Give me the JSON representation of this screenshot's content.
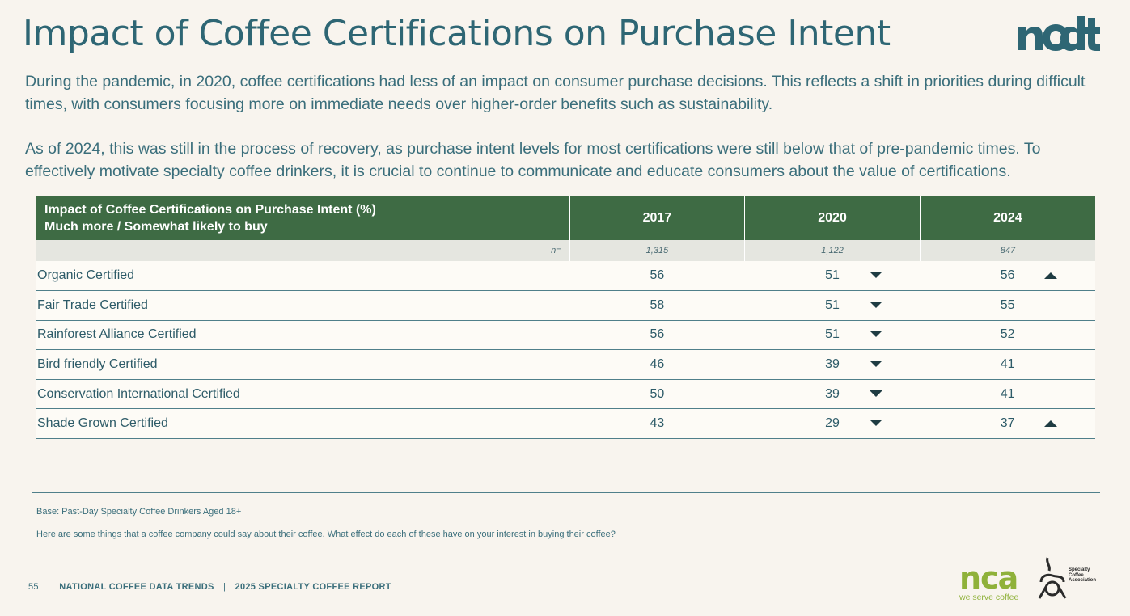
{
  "header": {
    "title": "Impact of Coffee Certifications on Purchase Intent",
    "logo_text": "ncdt"
  },
  "intro": {
    "paragraph1": "During the pandemic, in 2020, coffee certifications had less of an impact on consumer purchase decisions. This reflects a shift in priorities during difficult times, with consumers focusing more on immediate needs over higher-order benefits such as sustainability.",
    "paragraph2": "As of 2024, this was still in the process of recovery, as purchase intent levels for most certifications were still below that of pre-pandemic times. To effectively motivate specialty coffee drinkers, it is crucial to continue to communicate and educate consumers about the value of certifications."
  },
  "table": {
    "title_line1": "Impact of Coffee Certifications on Purchase Intent (%)",
    "title_line2": "Much more / Somewhat likely to buy",
    "years": [
      "2017",
      "2020",
      "2024"
    ],
    "n_label": "n=",
    "n_values": [
      "1,315",
      "1,122",
      "847"
    ],
    "rows": [
      {
        "label": "Organic Certified",
        "values": [
          "56",
          "51",
          "56"
        ],
        "arrows": [
          "",
          "down",
          "up"
        ]
      },
      {
        "label": "Fair Trade Certified",
        "values": [
          "58",
          "51",
          "55"
        ],
        "arrows": [
          "",
          "down",
          ""
        ]
      },
      {
        "label": "Rainforest Alliance Certified",
        "values": [
          "56",
          "51",
          "52"
        ],
        "arrows": [
          "",
          "down",
          ""
        ]
      },
      {
        "label": "Bird friendly Certified",
        "values": [
          "46",
          "39",
          "41"
        ],
        "arrows": [
          "",
          "down",
          ""
        ]
      },
      {
        "label": "Conservation International Certified",
        "values": [
          "50",
          "39",
          "41"
        ],
        "arrows": [
          "",
          "down",
          ""
        ]
      },
      {
        "label": "Shade Grown Certified",
        "values": [
          "43",
          "29",
          "37"
        ],
        "arrows": [
          "",
          "down",
          "up"
        ]
      }
    ]
  },
  "notes": {
    "base": "Base: Past-Day Specialty Coffee Drinkers Aged 18+",
    "question": "Here are some things that a coffee company could say about their coffee. What effect do each of these have on your interest in buying their coffee?"
  },
  "footer": {
    "page_number": "55",
    "left": "NATIONAL COFFEE DATA TRENDS",
    "separator": "|",
    "right": "2025 SPECIALTY COFFEE REPORT"
  },
  "logos": {
    "nca_mark": "nca",
    "nca_tagline": "we serve coffee",
    "sca_line1": "Specialty",
    "sca_line2": "Coffee",
    "sca_line3": "Association"
  },
  "colors": {
    "title": "#2e6674",
    "header_green": "#3e6b44",
    "nca_green": "#8fb13a",
    "arrow": "#1f3c42"
  }
}
